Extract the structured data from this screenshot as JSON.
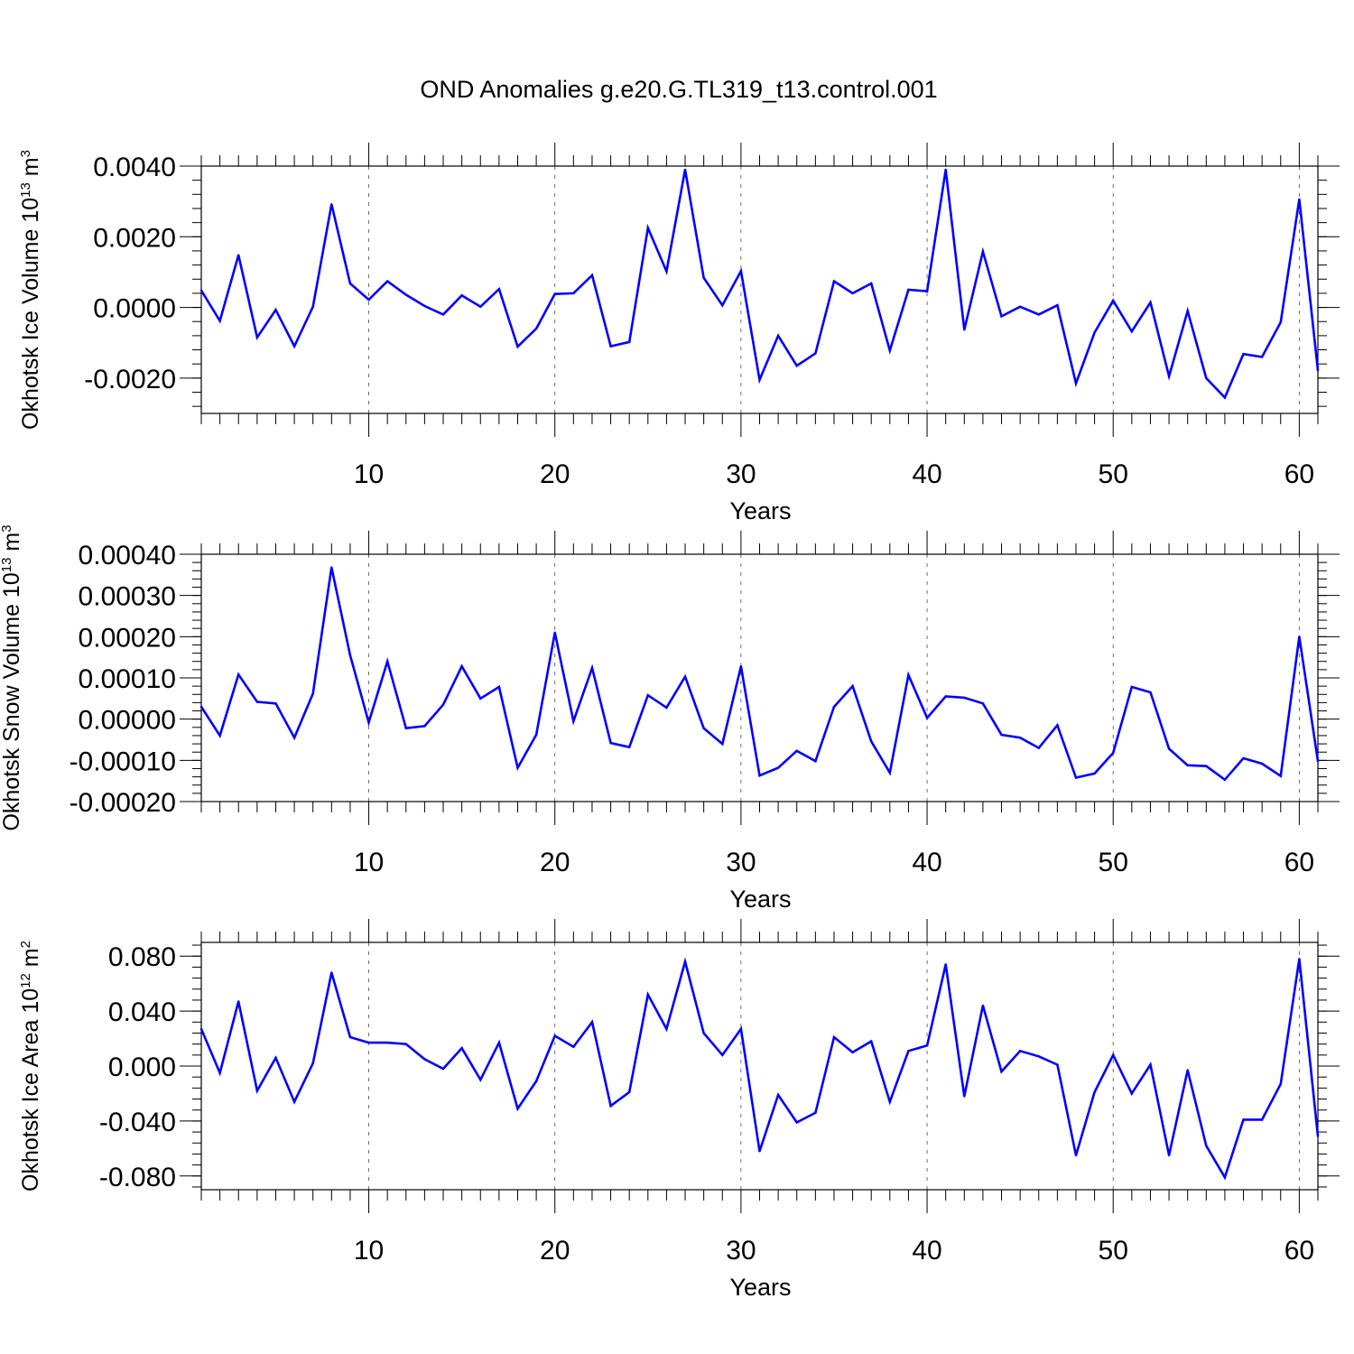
{
  "figure": {
    "title": "OND Anomalies g.e20.G.TL319_t13.control.001",
    "line_color": "#0000ff"
  },
  "chart_data": [
    {
      "type": "line",
      "xlabel": "Years",
      "ylabel_main": "Okhotsk Ice Volume 10",
      "ylabel_exp": "13",
      "ylabel_unit": " m",
      "ylabel_unit_exp": "3",
      "xlim": [
        1,
        61
      ],
      "ylim": [
        -0.003,
        0.004
      ],
      "x_ticks": [
        10,
        20,
        30,
        40,
        50,
        60
      ],
      "x_tick_labels": [
        "10",
        "20",
        "30",
        "40",
        "50",
        "60"
      ],
      "y_ticks": [
        0.004,
        0.002,
        0.0,
        -0.002
      ],
      "y_tick_labels": [
        "0.0040",
        "0.0020",
        "0.0000",
        "-0.0020"
      ],
      "y_minor_step": 0.0004,
      "x": [
        1,
        2,
        3,
        4,
        5,
        6,
        7,
        8,
        9,
        10,
        11,
        12,
        13,
        14,
        15,
        16,
        17,
        18,
        19,
        20,
        21,
        22,
        23,
        24,
        25,
        26,
        27,
        28,
        29,
        30,
        31,
        32,
        33,
        34,
        35,
        36,
        37,
        38,
        39,
        40,
        41,
        42,
        43,
        44,
        45,
        46,
        47,
        48,
        49,
        50,
        51,
        52,
        53,
        54,
        55,
        56,
        57,
        58,
        59,
        60,
        61
      ],
      "values": [
        0.00048,
        -0.00038,
        0.00148,
        -0.00085,
        -7e-05,
        -0.0011,
        2e-05,
        0.00292,
        0.00068,
        0.00022,
        0.00074,
        0.00036,
        4e-05,
        -0.0002,
        0.00034,
        2e-05,
        0.00052,
        -0.00111,
        -0.0006,
        0.00038,
        0.0004,
        0.00091,
        -0.0011,
        -0.00098,
        0.00225,
        0.00102,
        0.0039,
        0.00084,
        6e-05,
        0.00103,
        -0.00205,
        -0.0008,
        -0.00165,
        -0.0013,
        0.00074,
        0.0004,
        0.00068,
        -0.00122,
        0.0005,
        0.00046,
        0.0039,
        -0.00063,
        0.00158,
        -0.00025,
        2e-05,
        -0.0002,
        6e-05,
        -0.00215,
        -0.00071,
        0.00019,
        -0.00068,
        0.00014,
        -0.00195,
        -0.0001,
        -0.002,
        -0.00255,
        -0.00132,
        -0.0014,
        -0.00042,
        0.00306,
        -0.00178
      ]
    },
    {
      "type": "line",
      "xlabel": "Years",
      "ylabel_main": "Okhotsk Snow Volume 10",
      "ylabel_exp": "13",
      "ylabel_unit": " m",
      "ylabel_unit_exp": "3",
      "xlim": [
        1,
        61
      ],
      "ylim": [
        -0.0002,
        0.0004
      ],
      "x_ticks": [
        10,
        20,
        30,
        40,
        50,
        60
      ],
      "x_tick_labels": [
        "10",
        "20",
        "30",
        "40",
        "50",
        "60"
      ],
      "y_ticks": [
        0.0004,
        0.0003,
        0.0002,
        0.0001,
        0.0,
        -0.0001,
        -0.0002
      ],
      "y_tick_labels": [
        "0.00040",
        "0.00030",
        "0.00020",
        "0.00010",
        "0.00000",
        "-0.00010",
        "-0.00020"
      ],
      "y_minor_step": 2e-05,
      "x": [
        1,
        2,
        3,
        4,
        5,
        6,
        7,
        8,
        9,
        10,
        11,
        12,
        13,
        14,
        15,
        16,
        17,
        18,
        19,
        20,
        21,
        22,
        23,
        24,
        25,
        26,
        27,
        28,
        29,
        30,
        31,
        32,
        33,
        34,
        35,
        36,
        37,
        38,
        39,
        40,
        41,
        42,
        43,
        44,
        45,
        46,
        47,
        48,
        49,
        50,
        51,
        52,
        53,
        54,
        55,
        56,
        57,
        58,
        59,
        60,
        61
      ],
      "values": [
        3e-05,
        -4e-05,
        0.000108,
        4.2e-05,
        3.8e-05,
        -4.5e-05,
        6.2e-05,
        0.000368,
        0.000155,
        -8e-06,
        0.00014,
        -2.2e-05,
        -1.7e-05,
        3.5e-05,
        0.000128,
        5e-05,
        7.8e-05,
        -0.000118,
        -3.8e-05,
        0.00021,
        -5e-06,
        0.000124,
        -5.8e-05,
        -6.8e-05,
        5.8e-05,
        2.8e-05,
        0.000103,
        -2.2e-05,
        -6e-05,
        0.000128,
        -0.000137,
        -0.000118,
        -7.7e-05,
        -0.000102,
        3e-05,
        8e-05,
        -5.4e-05,
        -0.00013,
        0.000107,
        3e-06,
        5.5e-05,
        5.2e-05,
        3.8e-05,
        -3.8e-05,
        -4.5e-05,
        -7e-05,
        -1.5e-05,
        -0.000142,
        -0.000132,
        -8.2e-05,
        7.8e-05,
        6.5e-05,
        -7.2e-05,
        -0.000112,
        -0.000114,
        -0.000147,
        -9.5e-05,
        -0.000108,
        -0.000138,
        0.0002,
        -0.000102
      ]
    },
    {
      "type": "line",
      "xlabel": "Years",
      "ylabel_main": "Okhotsk Ice Area 10",
      "ylabel_exp": "12",
      "ylabel_unit": " m",
      "ylabel_unit_exp": "2",
      "xlim": [
        1,
        61
      ],
      "ylim": [
        -0.09,
        0.09
      ],
      "x_ticks": [
        10,
        20,
        30,
        40,
        50,
        60
      ],
      "x_tick_labels": [
        "10",
        "20",
        "30",
        "40",
        "50",
        "60"
      ],
      "y_ticks": [
        0.08,
        0.04,
        0.0,
        -0.04,
        -0.08
      ],
      "y_tick_labels": [
        "0.080",
        "0.040",
        "0.000",
        "-0.040",
        "-0.080"
      ],
      "y_minor_step": 0.008,
      "x": [
        1,
        2,
        3,
        4,
        5,
        6,
        7,
        8,
        9,
        10,
        11,
        12,
        13,
        14,
        15,
        16,
        17,
        18,
        19,
        20,
        21,
        22,
        23,
        24,
        25,
        26,
        27,
        28,
        29,
        30,
        31,
        32,
        33,
        34,
        35,
        36,
        37,
        38,
        39,
        40,
        41,
        42,
        43,
        44,
        45,
        46,
        47,
        48,
        49,
        50,
        51,
        52,
        53,
        54,
        55,
        56,
        57,
        58,
        59,
        60,
        61
      ],
      "values": [
        0.027,
        -0.005,
        0.047,
        -0.018,
        0.006,
        -0.026,
        0.002,
        0.068,
        0.021,
        0.017,
        0.017,
        0.016,
        0.005,
        -0.002,
        0.013,
        -0.01,
        0.017,
        -0.031,
        -0.011,
        0.022,
        0.014,
        0.032,
        -0.029,
        -0.019,
        0.052,
        0.027,
        0.076,
        0.024,
        0.008,
        0.027,
        -0.062,
        -0.021,
        -0.041,
        -0.034,
        0.021,
        0.01,
        0.018,
        -0.026,
        0.011,
        0.015,
        0.074,
        -0.022,
        0.044,
        -0.004,
        0.011,
        0.007,
        0.001,
        -0.065,
        -0.019,
        0.008,
        -0.02,
        0.001,
        -0.065,
        -0.003,
        -0.058,
        -0.081,
        -0.039,
        -0.039,
        -0.013,
        0.078,
        -0.051
      ]
    }
  ]
}
